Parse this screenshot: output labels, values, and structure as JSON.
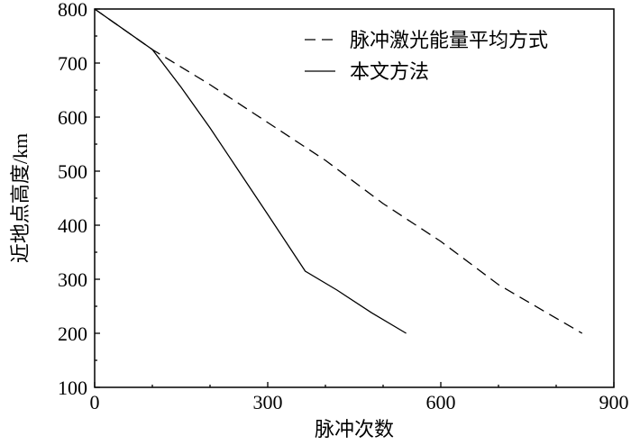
{
  "chart_data": {
    "type": "line",
    "xlabel": "脉冲次数",
    "ylabel": "近地点高度/km",
    "xlim": [
      0,
      900
    ],
    "ylim": [
      100,
      800
    ],
    "xticks": [
      0,
      300,
      600,
      900
    ],
    "yticks": [
      100,
      200,
      300,
      400,
      500,
      600,
      700,
      800
    ],
    "grid": false,
    "legend_position": "top-right",
    "series": [
      {
        "name": "脉冲激光能量平均方式",
        "style": "dashed",
        "color": "#000000",
        "x": [
          0,
          100,
          200,
          300,
          400,
          500,
          600,
          700,
          845
        ],
        "y": [
          800,
          725,
          660,
          590,
          520,
          440,
          370,
          290,
          200
        ]
      },
      {
        "name": "本文方法",
        "style": "solid",
        "color": "#000000",
        "x": [
          0,
          100,
          150,
          200,
          250,
          300,
          365,
          420,
          480,
          540
        ],
        "y": [
          800,
          725,
          655,
          580,
          500,
          420,
          315,
          280,
          238,
          200
        ]
      }
    ]
  }
}
